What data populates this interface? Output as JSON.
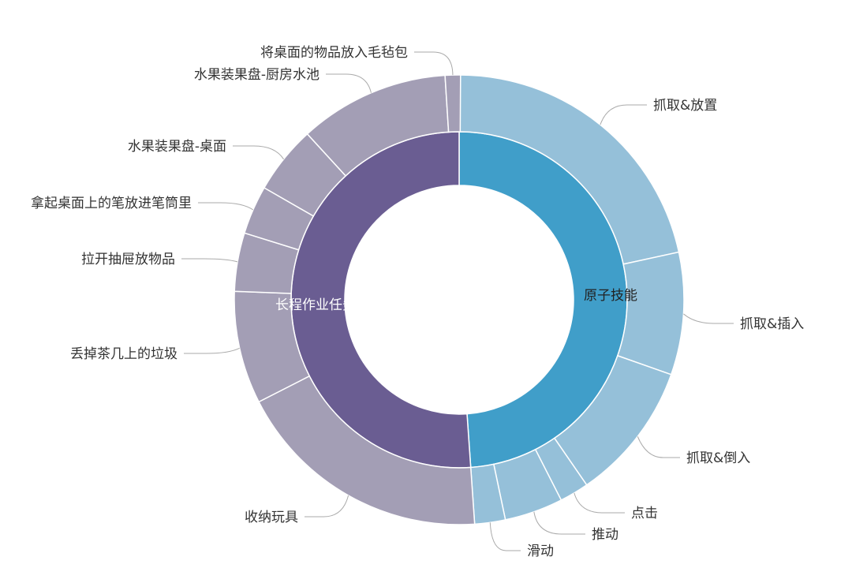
{
  "chart_data": {
    "type": "sunburst",
    "title": "",
    "inner": [
      {
        "name": "原子技能",
        "value": 48.9,
        "color": "#409ec9"
      },
      {
        "name": "长程作业任务",
        "value": 51.1,
        "color": "#6a5d92"
      }
    ],
    "outer": [
      {
        "name": "抓取&放置",
        "parent": "原子技能",
        "value": 21.6,
        "color": "#95c0d9"
      },
      {
        "name": "抓取&插入",
        "parent": "原子技能",
        "value": 8.8,
        "color": "#95c0d9"
      },
      {
        "name": "抓取&倒入",
        "parent": "原子技能",
        "value": 10.0,
        "color": "#95c0d9"
      },
      {
        "name": "点击",
        "parent": "原子技能",
        "value": 2.1,
        "color": "#95c0d9"
      },
      {
        "name": "推动",
        "parent": "原子技能",
        "value": 4.2,
        "color": "#95c0d9"
      },
      {
        "name": "滑动",
        "parent": "原子技能",
        "value": 2.2,
        "color": "#95c0d9"
      },
      {
        "name": "收纳玩具",
        "parent": "长程作业任务",
        "value": 18.6,
        "color": "#a39eb5"
      },
      {
        "name": "丢掉茶几上的垃圾",
        "parent": "长程作业任务",
        "value": 8.1,
        "color": "#a39eb5"
      },
      {
        "name": "拉开抽屉放物品",
        "parent": "长程作业任务",
        "value": 4.2,
        "color": "#a39eb5"
      },
      {
        "name": "拿起桌面上的笔放进笔筒里",
        "parent": "长程作业任务",
        "value": 3.5,
        "color": "#a39eb5"
      },
      {
        "name": "水果装果盘-桌面",
        "parent": "长程作业任务",
        "value": 4.9,
        "color": "#a39eb5"
      },
      {
        "name": "水果装果盘-厨房水池",
        "parent": "长程作业任务",
        "value": 10.8,
        "color": "#a39eb5"
      },
      {
        "name": "将桌面的物品放入毛毡包",
        "parent": "长程作业任务",
        "value": 1.1,
        "color": "#a39eb5"
      }
    ]
  }
}
